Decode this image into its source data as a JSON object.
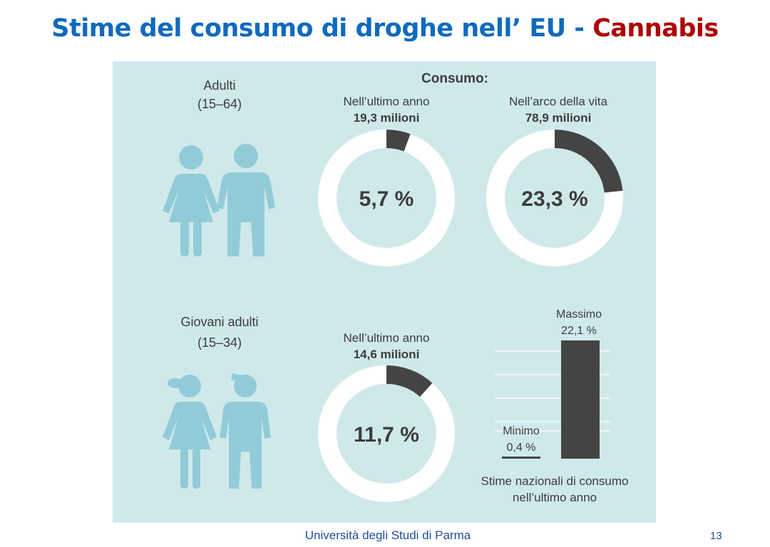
{
  "title": {
    "main": "Stime del consumo di droghe nell’ EU - ",
    "accent": "Cannabis"
  },
  "footer": {
    "university": "Università degli Studi di Parma",
    "page_number": "13"
  },
  "colors": {
    "panel_bg": "#cfe9ea",
    "figure": "#92cbd8",
    "dark": "#444444",
    "title_blue": "#0f6abf",
    "title_red": "#b00000"
  },
  "chart_data": [
    {
      "type": "pie",
      "heading": "Consumo:",
      "group": "Adulti",
      "group_range": "(15–64)",
      "label": "Nell’ultimo anno",
      "count": "19,3 milioni",
      "percent_label": "5,7 %",
      "value": 5.7
    },
    {
      "type": "pie",
      "group": "Adulti",
      "label": "Nell’arco della vita",
      "count": "78,9 milioni",
      "percent_label": "23,3 %",
      "value": 23.3
    },
    {
      "type": "pie",
      "group": "Giovani adulti",
      "group_range": "(15–34)",
      "label": "Nell’ultimo anno",
      "count": "14,6 milioni",
      "percent_label": "11,7 %",
      "value": 11.7
    },
    {
      "type": "bar",
      "caption": "Stime nazionali di consumo nell’ultimo anno",
      "categories": [
        "Minimo",
        "Massimo"
      ],
      "value_labels": [
        "0,4 %",
        "22,1 %"
      ],
      "values": [
        0.4,
        22.1
      ],
      "ylim": [
        0,
        22.1
      ],
      "grid": true
    }
  ]
}
